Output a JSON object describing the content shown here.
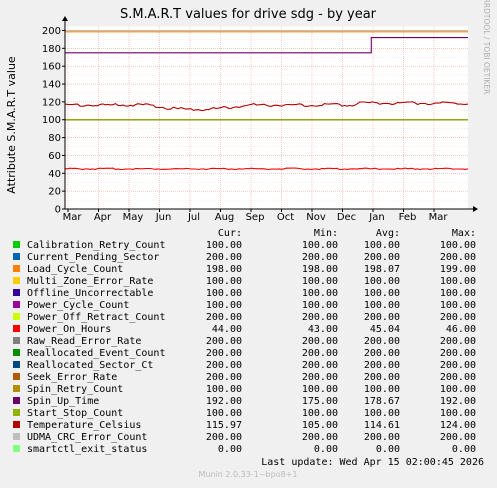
{
  "chart_data": {
    "type": "line",
    "title": "S.M.A.R.T values for drive sdg - by year",
    "ylabel": "Attribute S.M.A.R.T value",
    "side_label": "RRDTOOL / TOBI OETIKER",
    "ylim": [
      0,
      205
    ],
    "yticks": [
      0,
      20,
      40,
      60,
      80,
      100,
      120,
      140,
      160,
      180,
      200
    ],
    "xticks": [
      "Mar",
      "Apr",
      "May",
      "Jun",
      "Jul",
      "Aug",
      "Sep",
      "Oct",
      "Nov",
      "Dec",
      "Jan",
      "Feb",
      "Mar"
    ],
    "grid": true,
    "legend_headers": {
      "cur": "Cur:",
      "min": "Min:",
      "avg": "Avg:",
      "max": "Max:"
    },
    "series": [
      {
        "name": "Calibration_Retry_Count",
        "color": "#00cc00",
        "cur": "100.00",
        "min": "100.00",
        "avg": "100.00",
        "max": "100.00",
        "shape": "flat",
        "value": 100
      },
      {
        "name": "Current_Pending_Sector",
        "color": "#0066b3",
        "cur": "200.00",
        "min": "200.00",
        "avg": "200.00",
        "max": "200.00",
        "shape": "flat",
        "value": 200
      },
      {
        "name": "Load_Cycle_Count",
        "color": "#ff8000",
        "cur": "198.00",
        "min": "198.00",
        "avg": "198.07",
        "max": "199.00",
        "shape": "flat",
        "value": 198.5
      },
      {
        "name": "Multi_Zone_Error_Rate",
        "color": "#ffcc00",
        "cur": "100.00",
        "min": "100.00",
        "avg": "100.00",
        "max": "100.00",
        "shape": "flat",
        "value": 100
      },
      {
        "name": "Offline_Uncorrectable",
        "color": "#330099",
        "cur": "100.00",
        "min": "100.00",
        "avg": "100.00",
        "max": "100.00",
        "shape": "flat",
        "value": 100
      },
      {
        "name": "Power_Cycle_Count",
        "color": "#990099",
        "cur": "100.00",
        "min": "100.00",
        "avg": "100.00",
        "max": "100.00",
        "shape": "flat",
        "value": 100
      },
      {
        "name": "Power_Off_Retract_Count",
        "color": "#ccff00",
        "cur": "200.00",
        "min": "200.00",
        "avg": "200.00",
        "max": "200.00",
        "shape": "flat",
        "value": 200
      },
      {
        "name": "Power_On_Hours",
        "color": "#ff0000",
        "cur": "44.00",
        "min": "43.00",
        "avg": "45.04",
        "max": "46.00",
        "shape": "noisy",
        "value": 45
      },
      {
        "name": "Raw_Read_Error_Rate",
        "color": "#808080",
        "cur": "200.00",
        "min": "200.00",
        "avg": "200.00",
        "max": "200.00",
        "shape": "flat",
        "value": 200
      },
      {
        "name": "Reallocated_Event_Count",
        "color": "#008f00",
        "cur": "200.00",
        "min": "200.00",
        "avg": "200.00",
        "max": "200.00",
        "shape": "flat",
        "value": 200
      },
      {
        "name": "Reallocated_Sector_Ct",
        "color": "#00487d",
        "cur": "200.00",
        "min": "200.00",
        "avg": "200.00",
        "max": "200.00",
        "shape": "flat",
        "value": 200
      },
      {
        "name": "Seek_Error_Rate",
        "color": "#b35a00",
        "cur": "200.00",
        "min": "200.00",
        "avg": "200.00",
        "max": "200.00",
        "shape": "flat",
        "value": 200
      },
      {
        "name": "Spin_Retry_Count",
        "color": "#b38f00",
        "cur": "100.00",
        "min": "100.00",
        "avg": "100.00",
        "max": "100.00",
        "shape": "flat",
        "value": 100
      },
      {
        "name": "Spin_Up_Time",
        "color": "#6b006b",
        "cur": "192.00",
        "min": "175.00",
        "avg": "178.67",
        "max": "192.00",
        "shape": "step",
        "value": 175,
        "step_at": 0.76,
        "step_to": 192
      },
      {
        "name": "Start_Stop_Count",
        "color": "#8fb300",
        "cur": "100.00",
        "min": "100.00",
        "avg": "100.00",
        "max": "100.00",
        "shape": "flat",
        "value": 100
      },
      {
        "name": "Temperature_Celsius",
        "color": "#b30000",
        "cur": "115.97",
        "min": "105.00",
        "avg": "114.61",
        "max": "124.00",
        "shape": "wave",
        "value": 115
      },
      {
        "name": "UDMA_CRC_Error_Count",
        "color": "#bebebe",
        "cur": "200.00",
        "min": "200.00",
        "avg": "200.00",
        "max": "200.00",
        "shape": "flat",
        "value": 200
      },
      {
        "name": "smartctl_exit_status",
        "color": "#80ff80",
        "cur": "0.00",
        "min": "0.00",
        "avg": "0.00",
        "max": "0.00",
        "shape": "flat",
        "value": 0
      }
    ],
    "last_update": "Last update:  Wed Apr 15 02:00:45 2026",
    "footer": "Munin 2.0.33-1~bpo8+1"
  }
}
